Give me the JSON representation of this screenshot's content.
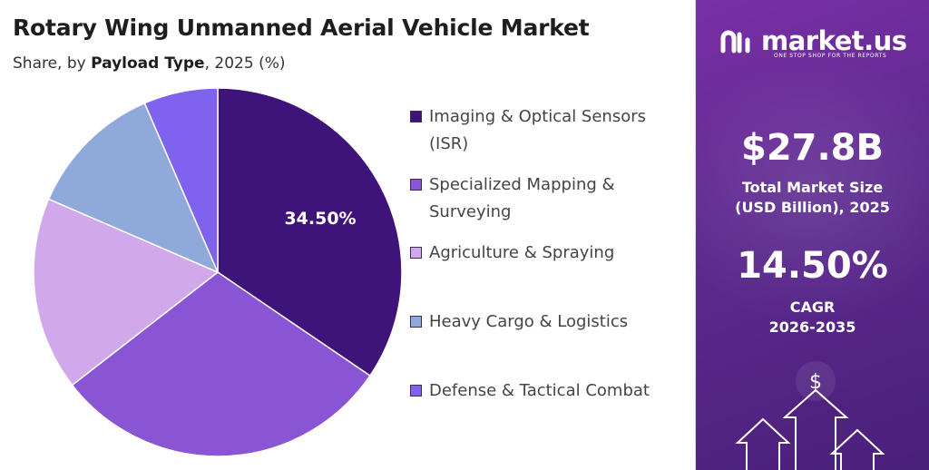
{
  "title": "Rotary Wing Unmanned Aerial Vehicle Market",
  "subtitle_prefix": "Share, by ",
  "subtitle_bold": "Payload Type",
  "subtitle_suffix": ", 2025 (%)",
  "chart_data": {
    "type": "pie",
    "title": "Rotary Wing Unmanned Aerial Vehicle Market",
    "subtitle": "Share, by Payload Type, 2025 (%)",
    "categories": [
      "Imaging & Optical Sensors (ISR)",
      "Specialized Mapping & Surveying",
      "Agriculture & Spraying",
      "Heavy Cargo & Logistics",
      "Defense & Tactical Combat"
    ],
    "values": [
      34.5,
      30.0,
      17.0,
      12.0,
      6.5
    ],
    "colors": [
      "#3f147a",
      "#8a55d4",
      "#d1a8ec",
      "#8fa9db",
      "#7f63ee"
    ],
    "data_labels": [
      "34.50%",
      "",
      "",
      "",
      ""
    ],
    "legend_placement": "right"
  },
  "panel": {
    "brand_name": "market.us",
    "brand_tagline": "ONE STOP SHOP FOR THE REPORTS",
    "market_size": "$27.8B",
    "market_size_label_1": "Total Market Size",
    "market_size_label_2": "(USD Billion), 2025",
    "cagr": "14.50%",
    "cagr_label_1": "CAGR",
    "cagr_label_2": "2026-2035",
    "dollar_symbol": "$"
  }
}
